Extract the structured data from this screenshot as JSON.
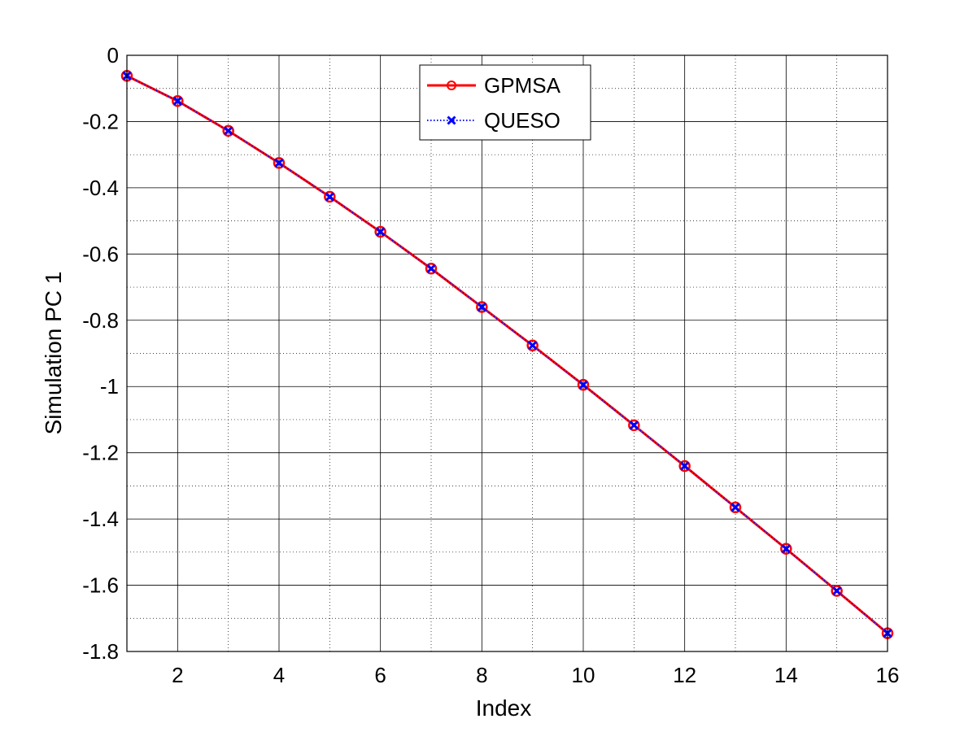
{
  "chart_data": {
    "type": "line",
    "xlabel": "Index",
    "ylabel": "Simulation PC 1",
    "xlim": [
      1,
      16
    ],
    "ylim": [
      -1.8,
      0
    ],
    "x_ticks": [
      2,
      4,
      6,
      8,
      10,
      12,
      14,
      16
    ],
    "x_tick_labels": [
      "2",
      "4",
      "6",
      "8",
      "10",
      "12",
      "14",
      "16"
    ],
    "y_ticks": [
      0,
      -0.2,
      -0.4,
      -0.6,
      -0.8,
      -1,
      -1.2,
      -1.4,
      -1.6,
      -1.8
    ],
    "y_tick_labels": [
      "0",
      "-0.2",
      "-0.4",
      "-0.6",
      "-0.8",
      "-1",
      "-1.2",
      "-1.4",
      "-1.6",
      "-1.8"
    ],
    "grid": true,
    "minor_grid": true,
    "legend_position": "top-center",
    "x": [
      1,
      2,
      3,
      4,
      5,
      6,
      7,
      8,
      9,
      10,
      11,
      12,
      13,
      14,
      15,
      16
    ],
    "series": [
      {
        "name": "GPMSA",
        "color": "#ff0000",
        "line_style": "solid",
        "marker": "circle",
        "values": [
          -0.062,
          -0.138,
          -0.228,
          -0.325,
          -0.427,
          -0.533,
          -0.644,
          -0.76,
          -0.876,
          -0.995,
          -1.117,
          -1.24,
          -1.365,
          -1.49,
          -1.617,
          -1.745
        ]
      },
      {
        "name": "QUESO",
        "color": "#0000ff",
        "line_style": "dotted",
        "marker": "x",
        "values": [
          -0.062,
          -0.138,
          -0.228,
          -0.325,
          -0.427,
          -0.533,
          -0.644,
          -0.76,
          -0.876,
          -0.995,
          -1.117,
          -1.24,
          -1.365,
          -1.49,
          -1.617,
          -1.745
        ]
      }
    ]
  }
}
